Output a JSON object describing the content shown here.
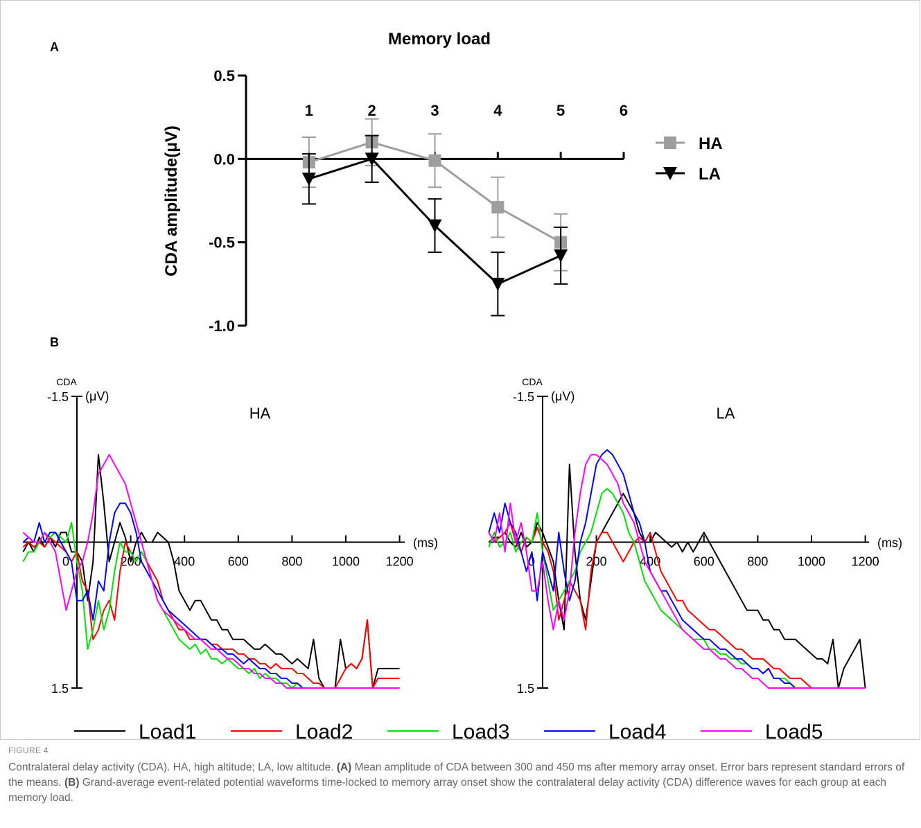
{
  "panels": {
    "a_label": "A",
    "b_label": "B"
  },
  "figure_label": "FIGURE 4",
  "caption": {
    "p1": "Contralateral delay activity (CDA). HA, high altitude; LA, low altitude. ",
    "a_tag": "(A)",
    "p2": " Mean amplitude of CDA between 300 and 450 ms after memory array onset. Error bars represent standard errors of the means. ",
    "b_tag": "(B)",
    "p3": " Grand-average event-related potential waveforms time-locked to memory array onset show the contralateral delay activity (CDA) difference waves for each group at each memory load."
  },
  "chart_data": [
    {
      "type": "line",
      "title": "Memory load",
      "ylabel": "CDA amplitude(μV)",
      "xlabel": "",
      "x": [
        1,
        2,
        3,
        4,
        5
      ],
      "x_ticks": [
        "1",
        "2",
        "3",
        "4",
        "5",
        "6"
      ],
      "xlim": [
        0,
        6
      ],
      "ylim": [
        -1.0,
        0.5
      ],
      "y_ticks": [
        "0.5",
        "0.0",
        "-0.5",
        "-1.0"
      ],
      "legend_position": "right",
      "series": [
        {
          "name": "HA",
          "color": "#9e9e9e",
          "marker": "square",
          "values": [
            -0.02,
            0.1,
            -0.01,
            -0.29,
            -0.5
          ],
          "errors": [
            0.15,
            0.14,
            0.16,
            0.18,
            0.17
          ]
        },
        {
          "name": "LA",
          "color": "#000000",
          "marker": "triangle-down",
          "values": [
            -0.12,
            0.0,
            -0.4,
            -0.75,
            -0.58
          ],
          "errors": [
            0.15,
            0.14,
            0.16,
            0.19,
            0.17
          ]
        }
      ]
    },
    {
      "type": "line",
      "title": "HA",
      "y_unit_label": "CDA",
      "y_unit": "(μV)",
      "x_unit": "(ms)",
      "y_ticks": [
        "-1.5",
        "1.5"
      ],
      "ylim": [
        -1.5,
        1.5
      ],
      "y_inverted": true,
      "xlim": [
        -200,
        1200
      ],
      "x_ticks": [
        "0",
        "200",
        "400",
        "600",
        "800",
        "1000",
        "1200"
      ],
      "x": [
        -200,
        -180,
        -160,
        -140,
        -120,
        -100,
        -80,
        -60,
        -40,
        -20,
        0,
        20,
        40,
        60,
        80,
        100,
        120,
        140,
        160,
        180,
        200,
        220,
        240,
        260,
        280,
        300,
        320,
        340,
        360,
        380,
        400,
        420,
        440,
        460,
        480,
        500,
        520,
        540,
        560,
        580,
        600,
        620,
        640,
        660,
        680,
        700,
        720,
        740,
        760,
        780,
        800,
        820,
        840,
        860,
        880,
        900,
        920,
        940,
        960,
        980,
        1000,
        1020,
        1040,
        1060,
        1080,
        1100,
        1120,
        1140,
        1160,
        1180,
        1200
      ],
      "series": [
        {
          "name": "Load1",
          "color": "#000000",
          "values": [
            0.1,
            0.0,
            0.1,
            -0.05,
            0.05,
            -0.05,
            0.05,
            -0.1,
            -0.1,
            0.1,
            0.1,
            0.2,
            0.6,
            0.2,
            -0.9,
            -0.4,
            0.2,
            0.0,
            -0.2,
            -0.05,
            0.2,
            0.0,
            -0.1,
            0.0,
            0.0,
            -0.1,
            -0.05,
            0.0,
            0.2,
            0.5,
            0.6,
            0.7,
            0.6,
            0.6,
            0.7,
            0.8,
            0.8,
            0.9,
            0.9,
            1.0,
            1.0,
            1.0,
            1.05,
            1.1,
            1.1,
            1.05,
            1.1,
            1.15,
            1.15,
            1.2,
            1.25,
            1.2,
            1.25,
            1.3,
            1.0,
            1.4,
            1.5,
            1.5,
            1.5,
            1.0,
            1.3,
            1.25,
            1.3,
            1.2,
            0.8,
            1.5,
            1.3,
            1.3,
            1.3,
            1.3,
            1.3
          ]
        },
        {
          "name": "Load2",
          "color": "#ff0000",
          "values": [
            0.05,
            0.0,
            0.05,
            0.0,
            0.05,
            -0.05,
            0.0,
            0.05,
            0.1,
            0.2,
            0.1,
            0.4,
            0.5,
            1.0,
            0.9,
            0.7,
            0.6,
            0.8,
            0.3,
            0.0,
            0.1,
            0.2,
            0.1,
            0.2,
            0.3,
            0.4,
            0.6,
            0.7,
            0.8,
            0.9,
            0.9,
            1.0,
            1.0,
            1.0,
            1.0,
            1.05,
            1.05,
            1.1,
            1.1,
            1.1,
            1.15,
            1.15,
            1.2,
            1.2,
            1.25,
            1.25,
            1.3,
            1.25,
            1.3,
            1.3,
            1.3,
            1.35,
            1.35,
            1.4,
            1.45,
            1.45,
            1.5,
            1.5,
            1.5,
            1.4,
            1.3,
            1.25,
            1.3,
            1.2,
            0.8,
            1.5,
            1.4,
            1.4,
            1.4,
            1.4,
            1.4
          ]
        },
        {
          "name": "Load3",
          "color": "#00e000",
          "values": [
            0.2,
            0.1,
            0.1,
            0.0,
            -0.1,
            -0.05,
            -0.1,
            -0.05,
            0.0,
            -0.2,
            0.2,
            0.5,
            1.1,
            0.9,
            0.6,
            0.9,
            0.7,
            0.3,
            0.0,
            0.1,
            0.1,
            0.2,
            0.1,
            0.2,
            0.4,
            0.6,
            0.7,
            0.8,
            0.9,
            1.0,
            1.05,
            1.1,
            1.05,
            1.15,
            1.1,
            1.2,
            1.2,
            1.25,
            1.2,
            1.25,
            1.3,
            1.3,
            1.35,
            1.3,
            1.4,
            1.35,
            1.4,
            1.4,
            1.45,
            1.45,
            1.5,
            1.45,
            1.5,
            1.5,
            1.5,
            1.5,
            1.5,
            1.5,
            1.5,
            1.5,
            1.5,
            1.5,
            1.5,
            1.5,
            1.5,
            1.5,
            1.5,
            1.5,
            1.5,
            1.5,
            1.5
          ]
        },
        {
          "name": "Load4",
          "color": "#0000ff",
          "values": [
            0.0,
            -0.05,
            0.0,
            -0.2,
            0.0,
            -0.1,
            -0.1,
            0.0,
            0.1,
            0.2,
            0.6,
            0.6,
            0.5,
            0.8,
            0.4,
            0.5,
            0.0,
            -0.3,
            -0.4,
            -0.4,
            -0.3,
            -0.1,
            0.2,
            0.3,
            0.4,
            0.5,
            0.6,
            0.7,
            0.75,
            0.8,
            0.85,
            0.9,
            0.95,
            1.0,
            1.0,
            1.05,
            1.1,
            1.1,
            1.15,
            1.15,
            1.2,
            1.25,
            1.2,
            1.25,
            1.3,
            1.3,
            1.35,
            1.35,
            1.4,
            1.4,
            1.45,
            1.45,
            1.5,
            1.5,
            1.5,
            1.5,
            1.5,
            1.5,
            1.5,
            1.5,
            1.5,
            1.5,
            1.5,
            1.5,
            1.5,
            1.5,
            1.5,
            1.5,
            1.5,
            1.5,
            1.5
          ]
        },
        {
          "name": "Load5",
          "color": "#ff00ff",
          "values": [
            -0.1,
            -0.05,
            0.0,
            0.0,
            -0.1,
            0.0,
            0.1,
            0.4,
            0.7,
            0.5,
            0.3,
            0.2,
            0.0,
            -0.3,
            -0.7,
            -0.8,
            -0.9,
            -0.8,
            -0.7,
            -0.6,
            -0.4,
            -0.2,
            0.0,
            0.2,
            0.4,
            0.6,
            0.7,
            0.75,
            0.8,
            0.85,
            0.9,
            0.95,
            1.0,
            1.0,
            1.05,
            1.1,
            1.1,
            1.15,
            1.2,
            1.2,
            1.25,
            1.3,
            1.3,
            1.35,
            1.35,
            1.4,
            1.4,
            1.45,
            1.45,
            1.5,
            1.5,
            1.5,
            1.5,
            1.5,
            1.5,
            1.5,
            1.5,
            1.5,
            1.5,
            1.5,
            1.5,
            1.5,
            1.5,
            1.5,
            1.5,
            1.5,
            1.5,
            1.5,
            1.5,
            1.5,
            1.5
          ]
        }
      ]
    },
    {
      "type": "line",
      "title": "LA",
      "y_unit_label": "CDA",
      "y_unit": "(μV)",
      "x_unit": "(ms)",
      "y_ticks": [
        "-1.5",
        "1.5"
      ],
      "ylim": [
        -1.5,
        1.5
      ],
      "y_inverted": true,
      "xlim": [
        -200,
        1200
      ],
      "x_ticks": [
        "0",
        "200",
        "400",
        "600",
        "800",
        "1000",
        "1200"
      ],
      "x": [
        -200,
        -180,
        -160,
        -140,
        -120,
        -100,
        -80,
        -60,
        -40,
        -20,
        0,
        20,
        40,
        60,
        80,
        100,
        120,
        140,
        160,
        180,
        200,
        220,
        240,
        260,
        280,
        300,
        320,
        340,
        360,
        380,
        400,
        420,
        440,
        460,
        480,
        500,
        520,
        540,
        560,
        580,
        600,
        620,
        640,
        660,
        680,
        700,
        720,
        740,
        760,
        780,
        800,
        820,
        840,
        860,
        880,
        900,
        920,
        940,
        960,
        980,
        1000,
        1020,
        1040,
        1060,
        1080,
        1100,
        1120,
        1140,
        1160,
        1180,
        1200
      ],
      "series": [
        {
          "name": "Load1",
          "color": "#000000",
          "values": [
            0.0,
            -0.05,
            -0.05,
            -0.1,
            0.0,
            0.05,
            -0.1,
            0.05,
            0.0,
            -0.2,
            -0.1,
            0.05,
            0.2,
            0.6,
            0.9,
            -0.8,
            0.1,
            0.6,
            0.8,
            0.4,
            0.0,
            -0.1,
            -0.2,
            -0.3,
            -0.4,
            -0.5,
            -0.4,
            -0.3,
            -0.1,
            0.0,
            0.0,
            -0.1,
            -0.05,
            0.0,
            0.05,
            0.0,
            0.1,
            0.0,
            0.1,
            0.0,
            -0.1,
            0.0,
            0.1,
            0.2,
            0.3,
            0.4,
            0.5,
            0.6,
            0.7,
            0.7,
            0.7,
            0.8,
            0.8,
            0.9,
            0.9,
            1.0,
            1.0,
            1.0,
            1.05,
            1.1,
            1.15,
            1.2,
            1.2,
            1.25,
            1.0,
            1.5,
            1.3,
            1.2,
            1.1,
            1.0,
            1.5
          ]
        },
        {
          "name": "Load2",
          "color": "#ff0000",
          "values": [
            -0.1,
            0.0,
            -0.05,
            -0.1,
            -0.2,
            0.0,
            0.1,
            -0.05,
            0.0,
            -0.15,
            0.0,
            0.1,
            0.3,
            0.8,
            0.6,
            0.4,
            0.5,
            0.6,
            0.9,
            0.3,
            0.0,
            -0.1,
            -0.1,
            0.0,
            0.1,
            0.2,
            0.1,
            0.0,
            -0.05,
            0.0,
            -0.1,
            0.1,
            0.3,
            0.4,
            0.5,
            0.6,
            0.6,
            0.7,
            0.75,
            0.8,
            0.85,
            0.9,
            0.9,
            0.95,
            1.0,
            1.05,
            1.1,
            1.1,
            1.15,
            1.2,
            1.2,
            1.2,
            1.25,
            1.3,
            1.3,
            1.35,
            1.4,
            1.4,
            1.4,
            1.45,
            1.5,
            1.5,
            1.5,
            1.5,
            1.5,
            1.5,
            1.5,
            1.5,
            1.5,
            1.5,
            1.5
          ]
        },
        {
          "name": "Load3",
          "color": "#00e000",
          "values": [
            0.05,
            -0.1,
            0.05,
            0.0,
            -0.1,
            0.1,
            0.0,
            -0.05,
            0.0,
            -0.3,
            0.1,
            0.4,
            0.7,
            0.6,
            0.5,
            0.4,
            0.3,
            0.1,
            0.0,
            -0.1,
            -0.3,
            -0.5,
            -0.55,
            -0.5,
            -0.4,
            -0.3,
            -0.1,
            0.0,
            0.2,
            0.4,
            0.5,
            0.6,
            0.7,
            0.75,
            0.8,
            0.85,
            0.9,
            0.95,
            1.0,
            1.0,
            1.0,
            1.1,
            1.1,
            1.15,
            1.15,
            1.2,
            1.2,
            1.25,
            1.25,
            1.3,
            1.3,
            1.35,
            1.3,
            1.4,
            1.4,
            1.4,
            1.45,
            1.5,
            1.5,
            1.5,
            1.5,
            1.5,
            1.5,
            1.5,
            1.5,
            1.5,
            1.5,
            1.5,
            1.5,
            1.5,
            1.5
          ]
        },
        {
          "name": "Load4",
          "color": "#0000ff",
          "values": [
            -0.1,
            -0.3,
            -0.1,
            -0.4,
            -0.2,
            -0.1,
            0.1,
            0.3,
            0.1,
            0.6,
            0.1,
            0.3,
            0.5,
            -0.1,
            0.3,
            0.6,
            0.4,
            0.0,
            -0.2,
            -0.5,
            -0.8,
            -0.9,
            -0.95,
            -0.9,
            -0.8,
            -0.7,
            -0.5,
            -0.3,
            -0.2,
            0.0,
            0.3,
            0.4,
            0.5,
            0.5,
            0.6,
            0.7,
            0.8,
            0.85,
            0.9,
            0.95,
            1.0,
            1.0,
            1.05,
            1.1,
            1.1,
            1.15,
            1.2,
            1.2,
            1.25,
            1.3,
            1.3,
            1.35,
            1.3,
            1.4,
            1.4,
            1.45,
            1.45,
            1.5,
            1.5,
            1.5,
            1.5,
            1.5,
            1.5,
            1.5,
            1.5,
            1.5,
            1.5,
            1.5,
            1.5,
            1.5,
            1.5
          ]
        },
        {
          "name": "Load5",
          "color": "#ff00ff",
          "values": [
            -0.1,
            0.0,
            -0.3,
            0.1,
            -0.4,
            0.0,
            -0.2,
            0.1,
            0.5,
            0.5,
            0.2,
            0.6,
            0.9,
            0.6,
            0.8,
            0.5,
            -0.1,
            -0.5,
            -0.8,
            -0.9,
            -0.9,
            -0.85,
            -0.8,
            -0.7,
            -0.6,
            -0.4,
            -0.3,
            -0.2,
            0.0,
            0.2,
            0.3,
            0.4,
            0.5,
            0.6,
            0.7,
            0.8,
            0.9,
            0.95,
            1.0,
            1.05,
            1.1,
            1.1,
            1.15,
            1.2,
            1.2,
            1.25,
            1.3,
            1.3,
            1.35,
            1.4,
            1.4,
            1.45,
            1.5,
            1.5,
            1.5,
            1.5,
            1.5,
            1.5,
            1.5,
            1.5,
            1.5,
            1.5,
            1.5,
            1.5,
            1.5,
            1.5,
            1.5,
            1.5,
            1.5,
            1.5,
            1.5
          ]
        }
      ]
    }
  ],
  "legend_b": [
    "Load1",
    "Load2",
    "Load3",
    "Load4",
    "Load5"
  ]
}
